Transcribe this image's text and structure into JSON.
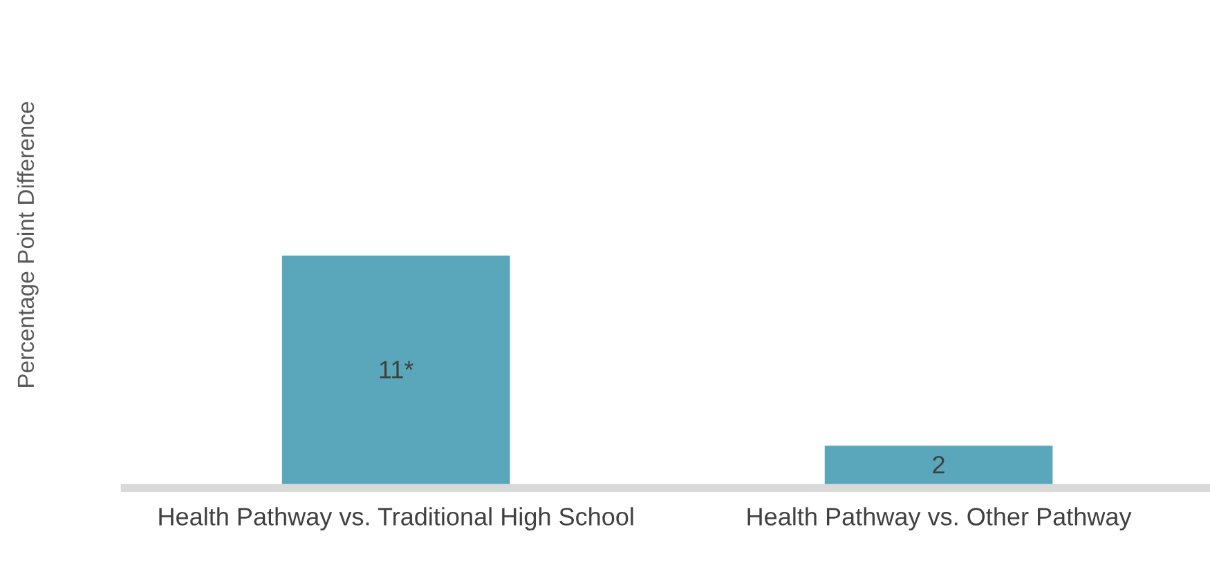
{
  "chart_data": {
    "type": "bar",
    "ylabel": "Percentage Point Difference",
    "categories": [
      "Health Pathway vs. Traditional High School",
      "Health Pathway vs. Other Pathway"
    ],
    "values": [
      11,
      2
    ],
    "value_labels": [
      "11*",
      "2"
    ],
    "color": "#5aa7bb",
    "grid": false,
    "legend": false
  }
}
